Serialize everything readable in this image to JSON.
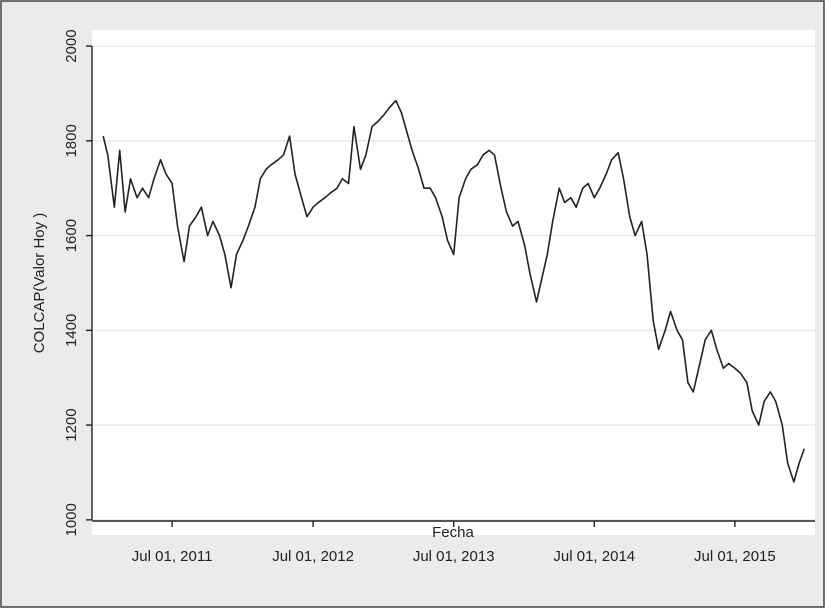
{
  "chart_data": {
    "type": "line",
    "x_label": "Fecha",
    "y_label": "COLCAP(Valor Hoy )",
    "x": [
      "2011-01-03",
      "2011-01-15",
      "2011-02-01",
      "2011-02-15",
      "2011-03-01",
      "2011-03-15",
      "2011-04-01",
      "2011-04-15",
      "2011-05-01",
      "2011-05-15",
      "2011-06-01",
      "2011-06-15",
      "2011-07-01",
      "2011-07-15",
      "2011-08-01",
      "2011-08-15",
      "2011-09-01",
      "2011-09-15",
      "2011-10-01",
      "2011-10-15",
      "2011-11-01",
      "2011-11-15",
      "2011-12-01",
      "2011-12-15",
      "2012-01-01",
      "2012-01-15",
      "2012-02-01",
      "2012-02-15",
      "2012-03-01",
      "2012-03-15",
      "2012-04-01",
      "2012-04-15",
      "2012-05-01",
      "2012-05-15",
      "2012-06-01",
      "2012-06-15",
      "2012-07-01",
      "2012-07-15",
      "2012-08-01",
      "2012-08-15",
      "2012-09-01",
      "2012-09-15",
      "2012-10-01",
      "2012-10-15",
      "2012-11-01",
      "2012-11-15",
      "2012-12-01",
      "2012-12-15",
      "2013-01-01",
      "2013-01-15",
      "2013-02-01",
      "2013-02-15",
      "2013-03-01",
      "2013-03-15",
      "2013-04-01",
      "2013-04-15",
      "2013-05-01",
      "2013-05-15",
      "2013-06-01",
      "2013-06-15",
      "2013-07-01",
      "2013-07-15",
      "2013-08-01",
      "2013-08-15",
      "2013-09-01",
      "2013-09-15",
      "2013-10-01",
      "2013-10-15",
      "2013-11-01",
      "2013-11-15",
      "2013-12-01",
      "2013-12-15",
      "2014-01-01",
      "2014-01-15",
      "2014-02-01",
      "2014-02-15",
      "2014-03-01",
      "2014-03-15",
      "2014-04-01",
      "2014-04-15",
      "2014-05-01",
      "2014-05-15",
      "2014-06-01",
      "2014-06-15",
      "2014-07-01",
      "2014-07-15",
      "2014-08-01",
      "2014-08-15",
      "2014-09-01",
      "2014-09-15",
      "2014-10-01",
      "2014-10-15",
      "2014-11-01",
      "2014-11-15",
      "2014-12-01",
      "2014-12-15",
      "2015-01-01",
      "2015-01-15",
      "2015-02-01",
      "2015-02-15",
      "2015-03-01",
      "2015-03-15",
      "2015-04-01",
      "2015-04-15",
      "2015-05-01",
      "2015-05-15",
      "2015-06-01",
      "2015-06-15",
      "2015-07-01",
      "2015-07-15",
      "2015-08-01",
      "2015-08-15",
      "2015-09-01",
      "2015-09-15",
      "2015-10-01",
      "2015-10-15",
      "2015-11-01",
      "2015-11-15",
      "2015-12-01",
      "2015-12-15",
      "2015-12-28"
    ],
    "series": [
      {
        "color": "#222222",
        "values": [
          1810,
          1770,
          1660,
          1780,
          1650,
          1720,
          1680,
          1700,
          1680,
          1720,
          1760,
          1730,
          1710,
          1620,
          1545,
          1620,
          1640,
          1660,
          1600,
          1630,
          1600,
          1560,
          1490,
          1560,
          1590,
          1620,
          1660,
          1720,
          1740,
          1750,
          1760,
          1770,
          1810,
          1730,
          1680,
          1640,
          1660,
          1670,
          1680,
          1690,
          1700,
          1720,
          1710,
          1830,
          1740,
          1770,
          1830,
          1840,
          1855,
          1870,
          1885,
          1860,
          1820,
          1780,
          1740,
          1700,
          1700,
          1680,
          1640,
          1590,
          1560,
          1680,
          1720,
          1740,
          1750,
          1770,
          1780,
          1770,
          1700,
          1650,
          1620,
          1630,
          1580,
          1520,
          1460,
          1510,
          1560,
          1630,
          1700,
          1670,
          1680,
          1660,
          1700,
          1710,
          1680,
          1700,
          1730,
          1760,
          1775,
          1720,
          1640,
          1600,
          1630,
          1560,
          1420,
          1360,
          1400,
          1440,
          1400,
          1380,
          1290,
          1270,
          1330,
          1380,
          1400,
          1360,
          1320,
          1330,
          1320,
          1310,
          1290,
          1230,
          1200,
          1250,
          1270,
          1250,
          1200,
          1120,
          1080,
          1120,
          1150
        ]
      }
    ],
    "xlim": [
      "2010-12-05",
      "2016-01-25"
    ],
    "xticks": [
      {
        "value": "2011-07-01",
        "label": "Jul 01, 2011"
      },
      {
        "value": "2012-07-01",
        "label": "Jul 01, 2012"
      },
      {
        "value": "2013-07-01",
        "label": "Jul 01, 2013"
      },
      {
        "value": "2014-07-01",
        "label": "Jul 01, 2014"
      },
      {
        "value": "2015-07-01",
        "label": "Jul 01, 2015"
      }
    ],
    "ylim": [
      968,
      2034
    ],
    "yticks": [
      1000,
      1200,
      1400,
      1600,
      1800,
      2000
    ],
    "grid": true
  }
}
